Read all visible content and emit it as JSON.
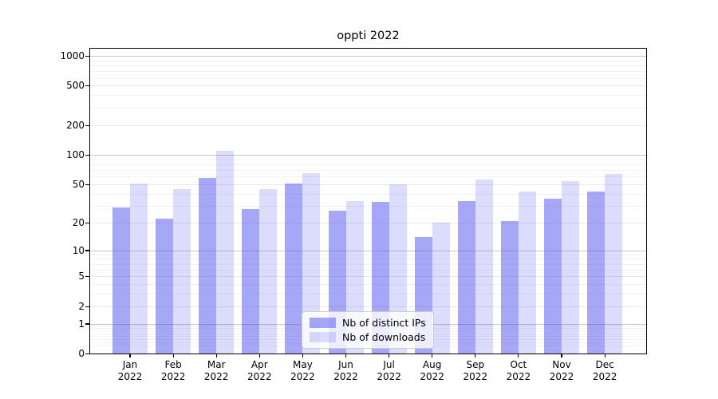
{
  "figure": {
    "background": "#ffffff",
    "accent_dark_bar": "#a8a8f7",
    "accent_light_bar": "#dcdcfb"
  },
  "chart_data": {
    "type": "bar",
    "title": "oppti 2022",
    "categories": [
      "Jan 2022",
      "Feb 2022",
      "Mar 2022",
      "Apr 2022",
      "May 2022",
      "Jun 2022",
      "Jul 2022",
      "Aug 2022",
      "Sep 2022",
      "Oct 2022",
      "Nov 2022",
      "Dec 2022"
    ],
    "series": [
      {
        "name": "Nb of distinct IPs",
        "color": "rgba(80,80,240,0.5)",
        "values": [
          29,
          22,
          58,
          28,
          51,
          27,
          33,
          14,
          34,
          21,
          36,
          42
        ]
      },
      {
        "name": "Nb of downloads",
        "color": "rgba(80,80,240,0.2)",
        "values": [
          51,
          45,
          110,
          45,
          65,
          34,
          50,
          20,
          56,
          42,
          54,
          64
        ]
      }
    ],
    "xlabel": "",
    "ylabel": "",
    "y_axis": {
      "scale": "log1p",
      "ticks": [
        0,
        1,
        2,
        5,
        10,
        20,
        50,
        100,
        200,
        500,
        1000
      ],
      "range": [
        0,
        1200
      ]
    },
    "grid": true,
    "legend": {
      "position": "lower center",
      "entries": [
        "Nb of distinct IPs",
        "Nb of downloads"
      ]
    }
  }
}
